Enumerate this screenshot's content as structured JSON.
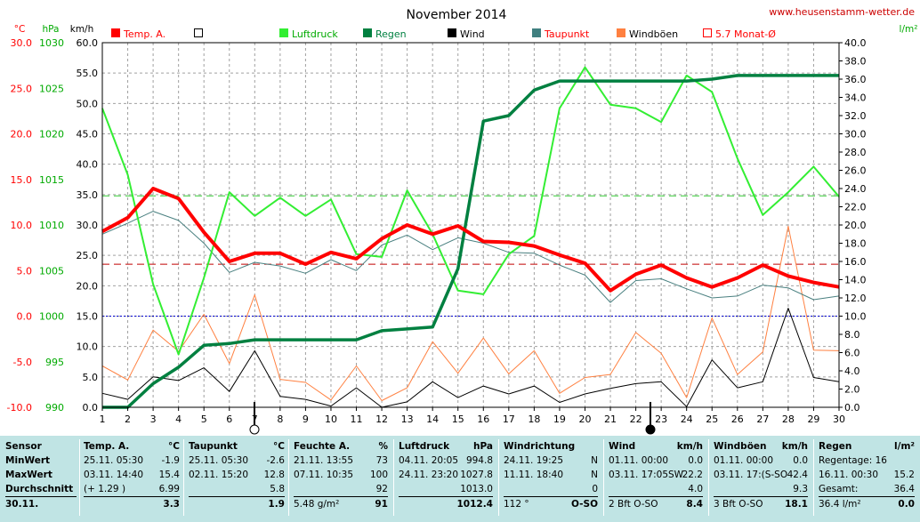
{
  "chart_data": {
    "type": "line",
    "title": "November 2014",
    "site": "www.heusenstamm-wetter.de",
    "x": [
      1,
      2,
      3,
      4,
      5,
      6,
      7,
      8,
      9,
      10,
      11,
      12,
      13,
      14,
      15,
      16,
      17,
      18,
      19,
      20,
      21,
      22,
      23,
      24,
      25,
      26,
      27,
      28,
      29,
      30
    ],
    "x_ticks": [
      "1",
      "2",
      "3",
      "4",
      "5",
      "6",
      "7",
      "8",
      "9",
      "10",
      "11",
      "12",
      "13",
      "14",
      "15",
      "16",
      "17",
      "18",
      "19",
      "20",
      "21",
      "22",
      "23",
      "24",
      "25",
      "26",
      "27",
      "28",
      "29",
      "30"
    ],
    "axes": {
      "temp": {
        "unit": "°C",
        "range": [
          -10,
          30
        ],
        "ticks": [
          "-10.0",
          "-5.0",
          "0.0",
          "5.0",
          "10.0",
          "15.0",
          "20.0",
          "25.0",
          "30.0"
        ]
      },
      "pressure": {
        "unit": "hPa",
        "range": [
          990,
          1030
        ],
        "ticks": [
          "990",
          "995",
          "1000",
          "1005",
          "1010",
          "1015",
          "1020",
          "1025",
          "1030"
        ]
      },
      "wind": {
        "unit": "km/h",
        "range": [
          0,
          60
        ],
        "ticks": [
          "0.0",
          "5.0",
          "10.0",
          "15.0",
          "20.0",
          "25.0",
          "30.0",
          "35.0",
          "40.0",
          "45.0",
          "50.0",
          "55.0",
          "60.0"
        ]
      },
      "rain": {
        "unit": "l/m²",
        "range": [
          0,
          40
        ],
        "ticks": [
          "0.0",
          "2.0",
          "4.0",
          "6.0",
          "8.0",
          "10.0",
          "12.0",
          "14.0",
          "16.0",
          "18.0",
          "20.0",
          "22.0",
          "24.0",
          "26.0",
          "28.0",
          "30.0",
          "32.0",
          "34.0",
          "36.0",
          "38.0",
          "40.0"
        ]
      }
    },
    "legend": [
      {
        "label": "Temp. A.",
        "color": "#ff0000",
        "style": "filled"
      },
      {
        "label": "",
        "color": "#000000",
        "style": "open"
      },
      {
        "label": "Luftdruck",
        "color": "#33ee33",
        "style": "filled"
      },
      {
        "label": "Regen",
        "color": "#008040",
        "style": "filled"
      },
      {
        "label": "Wind",
        "color": "#000000",
        "style": "filled"
      },
      {
        "label": "Taupunkt",
        "color": "#408080",
        "style": "filled"
      },
      {
        "label": "Windböen",
        "color": "#ff8040",
        "style": "filled"
      },
      {
        "label": "5.7 Monat-Ø",
        "color": "#ff0000",
        "style": "open"
      }
    ],
    "series": [
      {
        "name": "Temp. A.",
        "axis": "temp",
        "color": "#ff0000",
        "width": 4,
        "values": [
          9.3,
          10.8,
          14.0,
          12.9,
          9.2,
          6.0,
          6.9,
          6.9,
          5.7,
          7.0,
          6.3,
          8.5,
          10.0,
          9.0,
          9.9,
          8.2,
          8.1,
          7.7,
          6.7,
          5.8,
          2.8,
          4.6,
          5.6,
          4.2,
          3.2,
          4.2,
          5.6,
          4.4,
          3.7,
          3.2
        ]
      },
      {
        "name": "Taupunkt",
        "axis": "temp",
        "color": "#4a8080",
        "width": 1,
        "values": [
          9.0,
          10.2,
          11.5,
          10.5,
          8.0,
          4.8,
          5.9,
          5.5,
          4.7,
          6.2,
          5.0,
          7.8,
          8.9,
          7.3,
          8.6,
          8.0,
          7.0,
          6.9,
          5.6,
          4.5,
          1.5,
          3.9,
          4.1,
          3.0,
          2.0,
          2.2,
          3.4,
          3.1,
          1.8,
          2.2
        ]
      },
      {
        "name": "Luftdruck",
        "axis": "pressure",
        "color": "#33ee33",
        "width": 2,
        "values": [
          1022.8,
          1015.5,
          1003.5,
          995.8,
          1004.2,
          1013.6,
          1011.0,
          1013.0,
          1011.0,
          1012.8,
          1006.8,
          1006.5,
          1013.8,
          1009.0,
          1002.8,
          1002.4,
          1006.8,
          1008.8,
          1022.8,
          1027.3,
          1023.2,
          1022.8,
          1021.3,
          1026.4,
          1024.6,
          1017.3,
          1011.1,
          1013.6,
          1016.4,
          1013.1
        ]
      },
      {
        "name": "Regen",
        "axis": "rain",
        "color": "#008040",
        "width": 3.5,
        "values": [
          0.0,
          0.0,
          2.6,
          4.4,
          6.8,
          7.0,
          7.4,
          7.4,
          7.4,
          7.4,
          7.4,
          8.4,
          8.6,
          8.8,
          15.2,
          31.4,
          32.0,
          34.8,
          35.8,
          35.8,
          35.8,
          35.8,
          35.8,
          35.8,
          36.0,
          36.4,
          36.4,
          36.4,
          36.4,
          36.4
        ]
      },
      {
        "name": "Wind",
        "axis": "wind",
        "color": "#000000",
        "width": 1,
        "values": [
          2.3,
          1.3,
          5.0,
          4.4,
          6.5,
          2.6,
          9.3,
          1.8,
          1.3,
          0.2,
          3.2,
          0.0,
          0.9,
          4.2,
          1.6,
          3.5,
          2.2,
          3.5,
          0.8,
          2.2,
          3.1,
          3.9,
          4.2,
          0.1,
          7.8,
          3.2,
          4.2,
          16.3,
          4.9,
          4.2
        ]
      },
      {
        "name": "Windböen",
        "axis": "wind",
        "color": "#ff8040",
        "width": 1,
        "values": [
          6.8,
          4.5,
          12.7,
          9.2,
          15.3,
          7.2,
          18.5,
          4.6,
          4.1,
          1.2,
          6.8,
          1.1,
          3.2,
          10.8,
          5.6,
          11.4,
          5.5,
          9.3,
          2.3,
          4.9,
          5.4,
          12.3,
          8.9,
          1.6,
          14.7,
          5.4,
          9.1,
          29.8,
          9.4,
          9.3
        ]
      }
    ],
    "reference_lines": [
      {
        "label": "5.7 Monat-Ø",
        "axis": "temp",
        "value": 5.7,
        "color": "#c00000"
      },
      {
        "axis": "temp",
        "value": 0,
        "color": "#0000cc"
      },
      {
        "axis": "rain",
        "value": 23.2,
        "color": "#33cc33"
      }
    ],
    "grid": true
  },
  "summary": {
    "row_labels": [
      "Sensor",
      "MinWert",
      "MaxWert",
      "Durchschnitt",
      "30.11."
    ],
    "temp": {
      "header": "Temp. A.",
      "unit": "°C",
      "min_time": "25.11.  05:30",
      "min": "-1.9",
      "max_time": "03.11.  14:40",
      "max": "15.4",
      "avg_note": "(+ 1.29 )",
      "avg": "6.99",
      "today": "3.3"
    },
    "taupunkt": {
      "header": "Taupunkt",
      "unit": "°C",
      "min_time": "25.11.  05:30",
      "min": "-2.6",
      "max_time": "02.11.  15:20",
      "max": "12.8",
      "avg": "5.8",
      "today": "1.9"
    },
    "feuchte": {
      "header": "Feuchte A.",
      "unit": "%",
      "min_time": "21.11.  13:55",
      "min": "73",
      "max_time": "07.11.  10:35",
      "max": "100",
      "avg": "92",
      "today_note": "5.48 g/m²",
      "today": "91"
    },
    "luftdruck": {
      "header": "Luftdruck",
      "unit": "hPa",
      "min_time": "04.11.  20:05",
      "min": "994.8",
      "max_time": "24.11.  23:20",
      "max": "1027.8",
      "avg": "1013.0",
      "today": "1012.4"
    },
    "windrichtung": {
      "header": "Windrichtung",
      "min_time": "24.11.  19:25",
      "min": "N",
      "max_time": "11.11.  18:40",
      "max": "N",
      "avg": "0",
      "today_note": "112 °",
      "today": "O-SO"
    },
    "wind": {
      "header": "Wind",
      "unit": "km/h",
      "min_time": "01.11.  00:00",
      "min": "0.0",
      "max_time": "03.11.  17:05SW",
      "max": "22.2",
      "avg": "4.0",
      "today_note": "2 Bft O-SO",
      "today": "8.4"
    },
    "windboeen": {
      "header": "Windböen",
      "unit": "km/h",
      "min_time": "01.11.  00:00",
      "min": "0.0",
      "max_time": "03.11.  17:(S-SO",
      "max": "42.4",
      "avg": "9.3",
      "today_note": "3 Bft O-SO",
      "today": "18.1"
    },
    "regen": {
      "header": "Regen",
      "unit": "l/m²",
      "min_time": "Regentage: 16",
      "max_time": "16.11.  00:30",
      "max": "15.2",
      "avg_label": "Gesamt:",
      "avg": "36.4",
      "today_note": "36.4 l/m²",
      "today": "0.0"
    }
  }
}
